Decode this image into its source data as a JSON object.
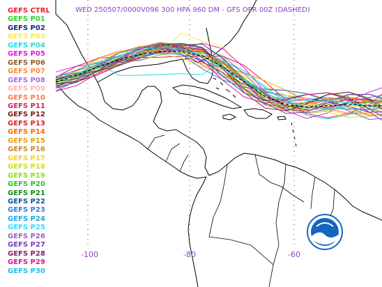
{
  "title": "WED 250507/0000V096  300 HPA 960 DM - GFS OPR 00Z (DASHED)",
  "legend": [
    {
      "label": "GEFS CTRL",
      "color": "#e8202a"
    },
    {
      "label": "GEFS P01",
      "color": "#2ed12e"
    },
    {
      "label": "GEFS P02",
      "color": "#1a237e"
    },
    {
      "label": "GEFS P03",
      "color": "#ffeb3b"
    },
    {
      "label": "GEFS P04",
      "color": "#29d9e3"
    },
    {
      "label": "GEFS P05",
      "color": "#e31ce3"
    },
    {
      "label": "GEFS P06",
      "color": "#8b5a2b"
    },
    {
      "label": "GEFS P07",
      "color": "#ff8c3a"
    },
    {
      "label": "GEFS P08",
      "color": "#b06ae0"
    },
    {
      "label": "GEFS P09",
      "color": "#ffb3bf"
    },
    {
      "label": "GEFS P10",
      "color": "#ff7a45"
    },
    {
      "label": "GEFS P11",
      "color": "#d81e5b"
    },
    {
      "label": "GEFS P12",
      "color": "#7a1414"
    },
    {
      "label": "GEFS P13",
      "color": "#d2281e"
    },
    {
      "label": "GEFS P14",
      "color": "#ff6a00"
    },
    {
      "label": "GEFS P15",
      "color": "#e0a01e"
    },
    {
      "label": "GEFS P16",
      "color": "#c98a2e"
    },
    {
      "label": "GEFS P17",
      "color": "#f5d21e"
    },
    {
      "label": "GEFS P18",
      "color": "#cbe01e"
    },
    {
      "label": "GEFS P19",
      "color": "#8fe01e"
    },
    {
      "label": "GEFS P20",
      "color": "#2fbf2f"
    },
    {
      "label": "GEFS P21",
      "color": "#16861e"
    },
    {
      "label": "GEFS P22",
      "color": "#1c4f8f"
    },
    {
      "label": "GEFS P23",
      "color": "#2f7fe0"
    },
    {
      "label": "GEFS P24",
      "color": "#1fa5e6"
    },
    {
      "label": "GEFS P25",
      "color": "#3fd5ff"
    },
    {
      "label": "GEFS P26",
      "color": "#9a5fc9"
    },
    {
      "label": "GEFS P27",
      "color": "#7a3fb0"
    },
    {
      "label": "GEFS P28",
      "color": "#7a1f6a"
    },
    {
      "label": "GEFS P29",
      "color": "#e0148c"
    },
    {
      "label": "GEFS P30",
      "color": "#1fc0e6"
    }
  ],
  "longitude_labels": [
    "-100",
    "-80",
    "-60"
  ],
  "colors": {
    "coastline": "#000000",
    "gridline": "#b01060",
    "label": "#8f3fbf",
    "opr_dashed": "#000000",
    "noaa_blue": "#1565c0"
  },
  "icons": [
    "noaa-logo"
  ]
}
